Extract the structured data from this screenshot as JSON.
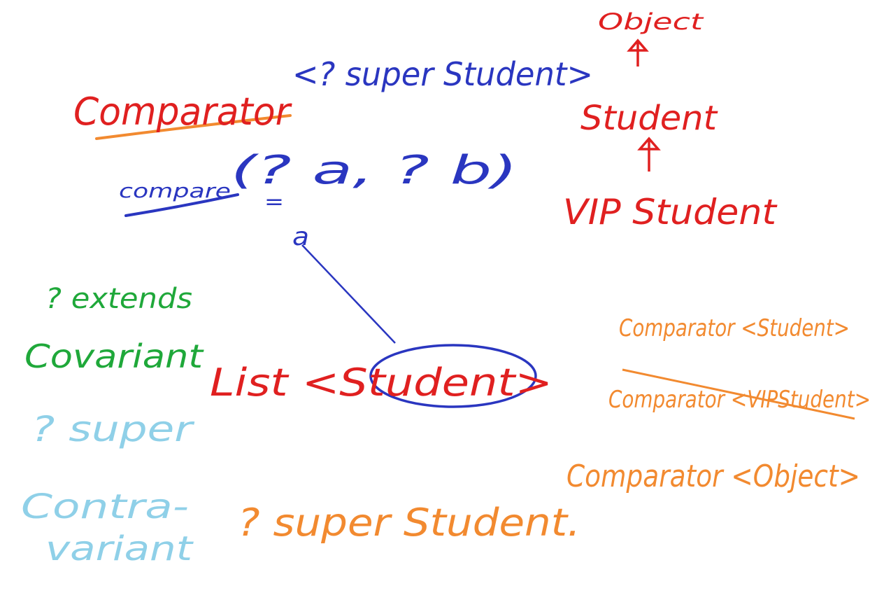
{
  "hierarchy": {
    "top": "Object",
    "middle": "Student",
    "bottom": "VIP Student"
  },
  "signature": {
    "interface": "Comparator",
    "bound": "<? super Student>",
    "method": "compare",
    "params": "(? a, ? b)",
    "equals": "=",
    "result": "a"
  },
  "variance": {
    "extends": "? extends",
    "covariant": "Covariant",
    "super": "? super",
    "contravariant_1": "Contra-",
    "contravariant_2": "variant"
  },
  "example": {
    "list": "List <Student>",
    "wildcard": "? super Student."
  },
  "candidates": [
    "Comparator <Student>",
    "Comparator <VIPStudent>",
    "Comparator <Object>"
  ]
}
